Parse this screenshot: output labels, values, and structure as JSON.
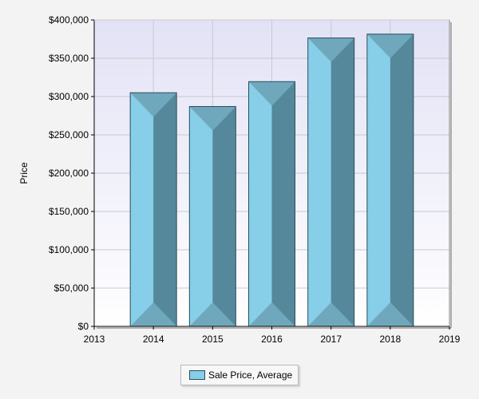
{
  "chart_data": {
    "type": "bar",
    "title": "",
    "ylabel": "Price",
    "xlabel": "",
    "x_ticks": [
      2013,
      2014,
      2015,
      2016,
      2017,
      2018,
      2019
    ],
    "xlim": [
      2013,
      2019
    ],
    "categories": [
      2014,
      2015,
      2016,
      2017,
      2018
    ],
    "series": [
      {
        "name": "Sale Price, Average",
        "values": [
          305000,
          287000,
          319500,
          376500,
          381500
        ]
      }
    ],
    "ylim": [
      0,
      400000
    ],
    "y_ticks": [
      0,
      50000,
      100000,
      150000,
      200000,
      250000,
      300000,
      350000,
      400000
    ],
    "y_tick_labels": [
      "$0",
      "$50,000",
      "$100,000",
      "$150,000",
      "$200,000",
      "$250,000",
      "$300,000",
      "$350,000",
      "$400,000"
    ],
    "grid": true,
    "legend_position": "bottom-center",
    "colors": {
      "bar_light": "#87CEE8",
      "bar_dark": "#55889A",
      "bar_bevel": "#6FA8BC",
      "bar_outline": "#2B4D5A",
      "plot_bg_top": "#E2E2F6",
      "plot_bg_bottom": "#FFFFFF",
      "grid": "#C8C8D2"
    }
  }
}
